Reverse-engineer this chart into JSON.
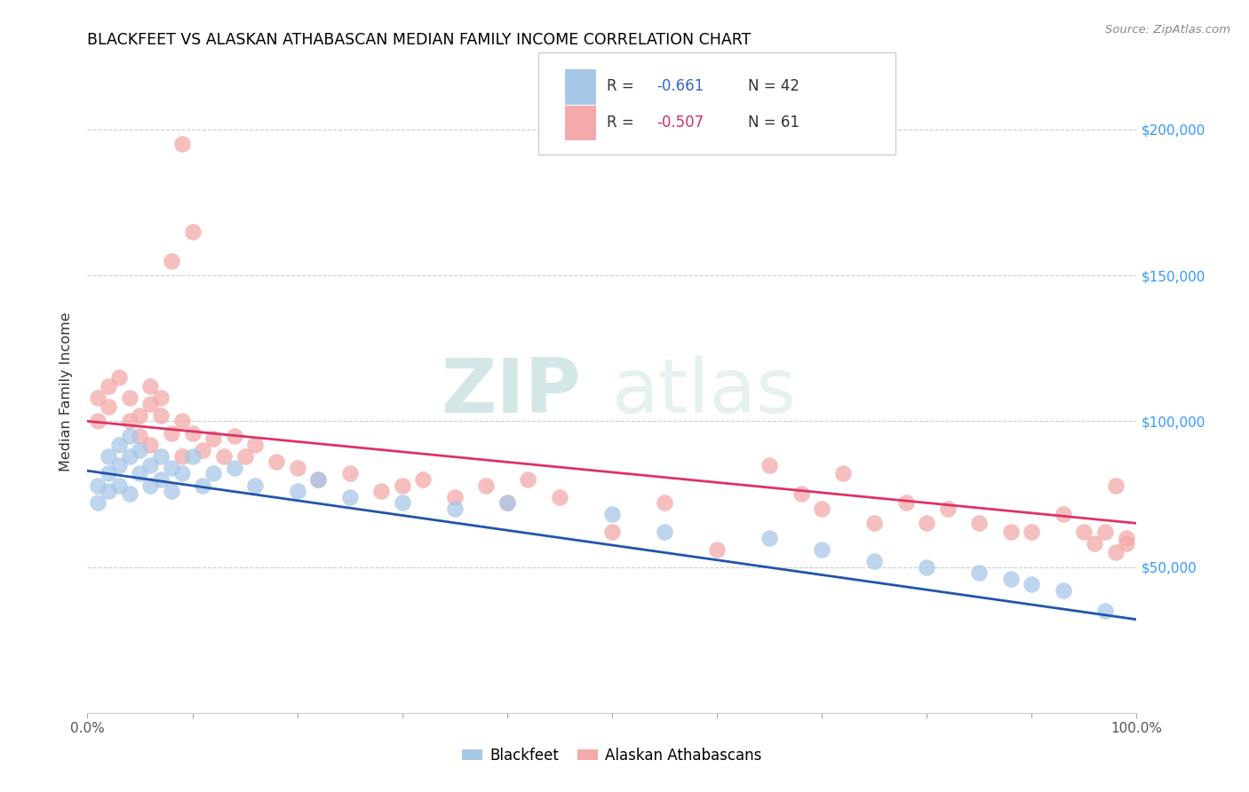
{
  "title": "BLACKFEET VS ALASKAN ATHABASCAN MEDIAN FAMILY INCOME CORRELATION CHART",
  "source": "Source: ZipAtlas.com",
  "ylabel": "Median Family Income",
  "right_ytick_labels": [
    "$50,000",
    "$100,000",
    "$150,000",
    "$200,000"
  ],
  "right_ytick_values": [
    50000,
    100000,
    150000,
    200000
  ],
  "legend_label1": "Blackfeet",
  "legend_label2": "Alaskan Athabascans",
  "color_blue": "#A8C8E8",
  "color_pink": "#F4AAAA",
  "color_blue_line": "#2255AA",
  "color_pink_line": "#DD3366",
  "color_rvalue_blue": "#3366CC",
  "color_rvalue_pink": "#CC3366",
  "watermark_zip": "ZIP",
  "watermark_atlas": "atlas",
  "xlim": [
    0.0,
    1.0
  ],
  "ylim": [
    0,
    220000
  ],
  "blackfeet_x": [
    0.01,
    0.01,
    0.02,
    0.02,
    0.02,
    0.03,
    0.03,
    0.03,
    0.04,
    0.04,
    0.04,
    0.05,
    0.05,
    0.06,
    0.06,
    0.07,
    0.07,
    0.08,
    0.08,
    0.09,
    0.1,
    0.11,
    0.12,
    0.14,
    0.16,
    0.2,
    0.22,
    0.25,
    0.3,
    0.35,
    0.4,
    0.5,
    0.55,
    0.65,
    0.7,
    0.75,
    0.8,
    0.85,
    0.88,
    0.9,
    0.93,
    0.97
  ],
  "blackfeet_y": [
    78000,
    72000,
    88000,
    82000,
    76000,
    92000,
    85000,
    78000,
    95000,
    88000,
    75000,
    90000,
    82000,
    85000,
    78000,
    88000,
    80000,
    84000,
    76000,
    82000,
    88000,
    78000,
    82000,
    84000,
    78000,
    76000,
    80000,
    74000,
    72000,
    70000,
    72000,
    68000,
    62000,
    60000,
    56000,
    52000,
    50000,
    48000,
    46000,
    44000,
    42000,
    35000
  ],
  "athabascan_x": [
    0.01,
    0.01,
    0.02,
    0.02,
    0.03,
    0.04,
    0.04,
    0.05,
    0.05,
    0.06,
    0.06,
    0.06,
    0.07,
    0.07,
    0.08,
    0.09,
    0.09,
    0.1,
    0.11,
    0.12,
    0.13,
    0.14,
    0.15,
    0.16,
    0.18,
    0.2,
    0.22,
    0.25,
    0.28,
    0.3,
    0.32,
    0.35,
    0.38,
    0.4,
    0.42,
    0.45,
    0.5,
    0.55,
    0.6,
    0.65,
    0.68,
    0.7,
    0.72,
    0.75,
    0.78,
    0.8,
    0.82,
    0.85,
    0.88,
    0.9,
    0.93,
    0.95,
    0.96,
    0.97,
    0.98,
    0.98,
    0.99,
    0.99,
    0.1,
    0.09,
    0.08
  ],
  "athabascan_y": [
    100000,
    108000,
    112000,
    105000,
    115000,
    108000,
    100000,
    95000,
    102000,
    106000,
    92000,
    112000,
    102000,
    108000,
    96000,
    100000,
    88000,
    96000,
    90000,
    94000,
    88000,
    95000,
    88000,
    92000,
    86000,
    84000,
    80000,
    82000,
    76000,
    78000,
    80000,
    74000,
    78000,
    72000,
    80000,
    74000,
    62000,
    72000,
    56000,
    85000,
    75000,
    70000,
    82000,
    65000,
    72000,
    65000,
    70000,
    65000,
    62000,
    62000,
    68000,
    62000,
    58000,
    62000,
    55000,
    78000,
    60000,
    58000,
    165000,
    195000,
    155000
  ]
}
